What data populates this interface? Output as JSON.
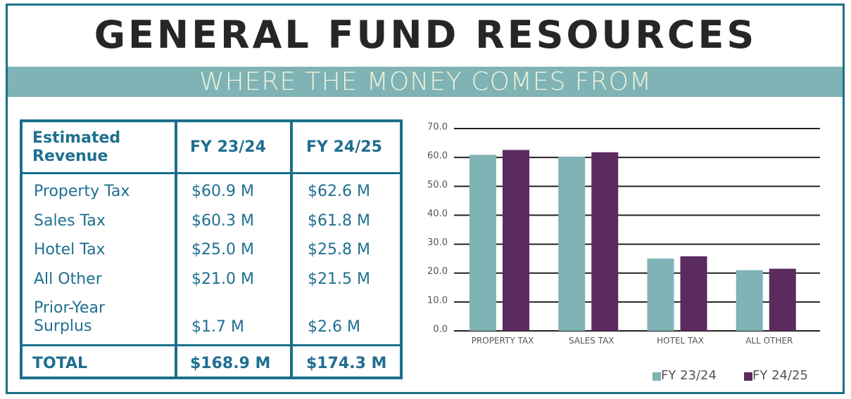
{
  "header": {
    "title": "GENERAL FUND RESOURCES",
    "subtitle": "WHERE THE MONEY COMES FROM"
  },
  "table": {
    "columns": [
      "Estimated Revenue",
      "FY 23/24",
      "FY 24/25"
    ],
    "rows": [
      [
        "Property Tax",
        "$60.9 M",
        "$62.6 M"
      ],
      [
        "Sales Tax",
        "$60.3 M",
        "$61.8 M"
      ],
      [
        "Hotel Tax",
        "$25.0 M",
        "$25.8 M"
      ],
      [
        "All Other",
        "$21.0 M",
        "$21.5 M"
      ],
      [
        "Prior-Year Surplus",
        "$1.7 M",
        "$2.6 M"
      ]
    ],
    "total": [
      "TOTAL",
      "$168.9 M",
      "$174.3 M"
    ]
  },
  "chart_data": {
    "type": "bar",
    "categories": [
      "PROPERTY TAX",
      "SALES TAX",
      "HOTEL TAX",
      "ALL OTHER"
    ],
    "series": [
      {
        "name": "FY 23/24",
        "color": "#7fb3b5",
        "values": [
          60.9,
          60.3,
          25.0,
          21.0
        ]
      },
      {
        "name": "FY 24/25",
        "color": "#5b2a5f",
        "values": [
          62.6,
          61.8,
          25.8,
          21.5
        ]
      }
    ],
    "ylim": [
      0,
      70
    ],
    "yticks": [
      {
        "value": 0,
        "label": "0.0"
      },
      {
        "value": 10,
        "label": "10.0"
      },
      {
        "value": 20,
        "label": "20.0"
      },
      {
        "value": 30,
        "label": "30.0"
      },
      {
        "value": 40,
        "label": "40.0"
      },
      {
        "value": 50,
        "label": "50.0"
      },
      {
        "value": 60,
        "label": "60.0"
      },
      {
        "value": 70,
        "label": "70.0"
      }
    ],
    "grid": true,
    "legend": "bottom-right"
  }
}
